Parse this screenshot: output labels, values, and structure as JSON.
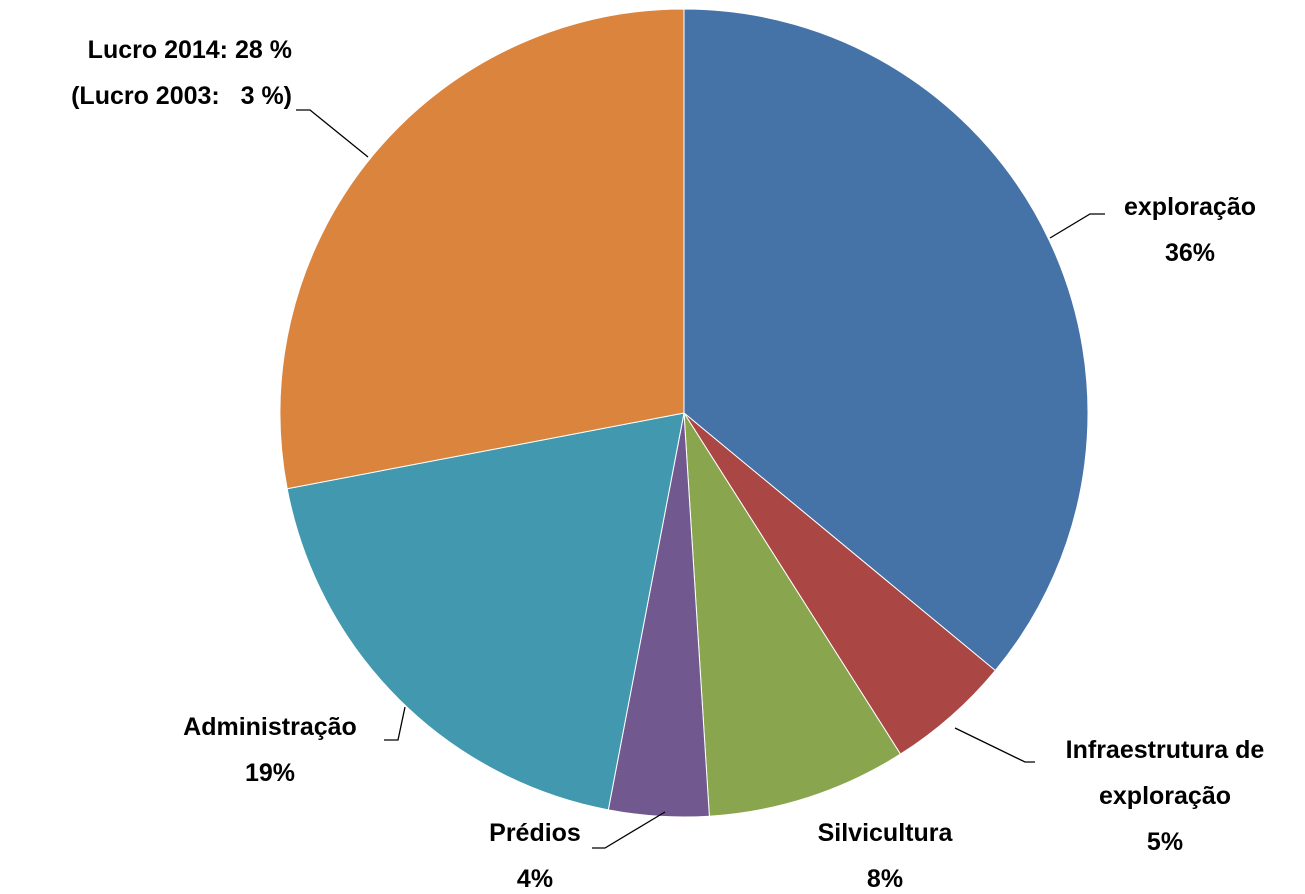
{
  "chart_data": {
    "type": "pie",
    "categories": [
      "exploração",
      "Infraestrutura de exploração",
      "Silvicultura",
      "Prédios",
      "Administração",
      "Lucro 2014:"
    ],
    "values": [
      36,
      5,
      8,
      4,
      19,
      28
    ],
    "value_labels": [
      "36%",
      "5%",
      "8%",
      "4%",
      "19%",
      "28 %"
    ],
    "colors": [
      "#4572a7",
      "#aa4643",
      "#89a54e",
      "#71588f",
      "#4198af",
      "#db843d"
    ],
    "annotation": "(Lucro 2003:   3 %)"
  }
}
